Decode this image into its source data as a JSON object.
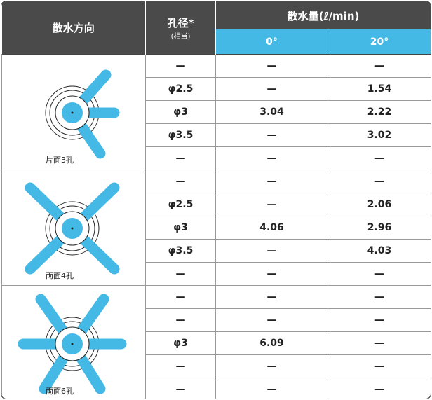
{
  "header": {
    "direction": "散水方向",
    "diameter": "孔径*",
    "diameter_note": "(相当)",
    "flow": "散水量(ℓ/min)",
    "angles": [
      "0°",
      "20°"
    ]
  },
  "groups": [
    {
      "label": "片面3孔",
      "rows": [
        [
          "—",
          "—",
          "—"
        ],
        [
          "φ2.5",
          "—",
          1.54
        ],
        [
          "φ3",
          3.04,
          2.22
        ],
        [
          "φ3.5",
          "—",
          3.02
        ],
        [
          "—",
          "—",
          "—"
        ]
      ]
    },
    {
      "label": "両面4孔",
      "rows": [
        [
          "—",
          "—",
          "—"
        ],
        [
          "φ2.5",
          "—",
          2.06
        ],
        [
          "φ3",
          4.06,
          2.96
        ],
        [
          "φ3.5",
          "—",
          4.03
        ],
        [
          "—",
          "—",
          "—"
        ]
      ]
    },
    {
      "label": "両面6孔",
      "rows": [
        [
          "—",
          "—",
          "—"
        ],
        [
          "—",
          "—",
          "—"
        ],
        [
          "φ3",
          6.09,
          "—"
        ],
        [
          "—",
          "—",
          "—"
        ],
        [
          "—",
          "—",
          "—"
        ]
      ]
    }
  ]
}
